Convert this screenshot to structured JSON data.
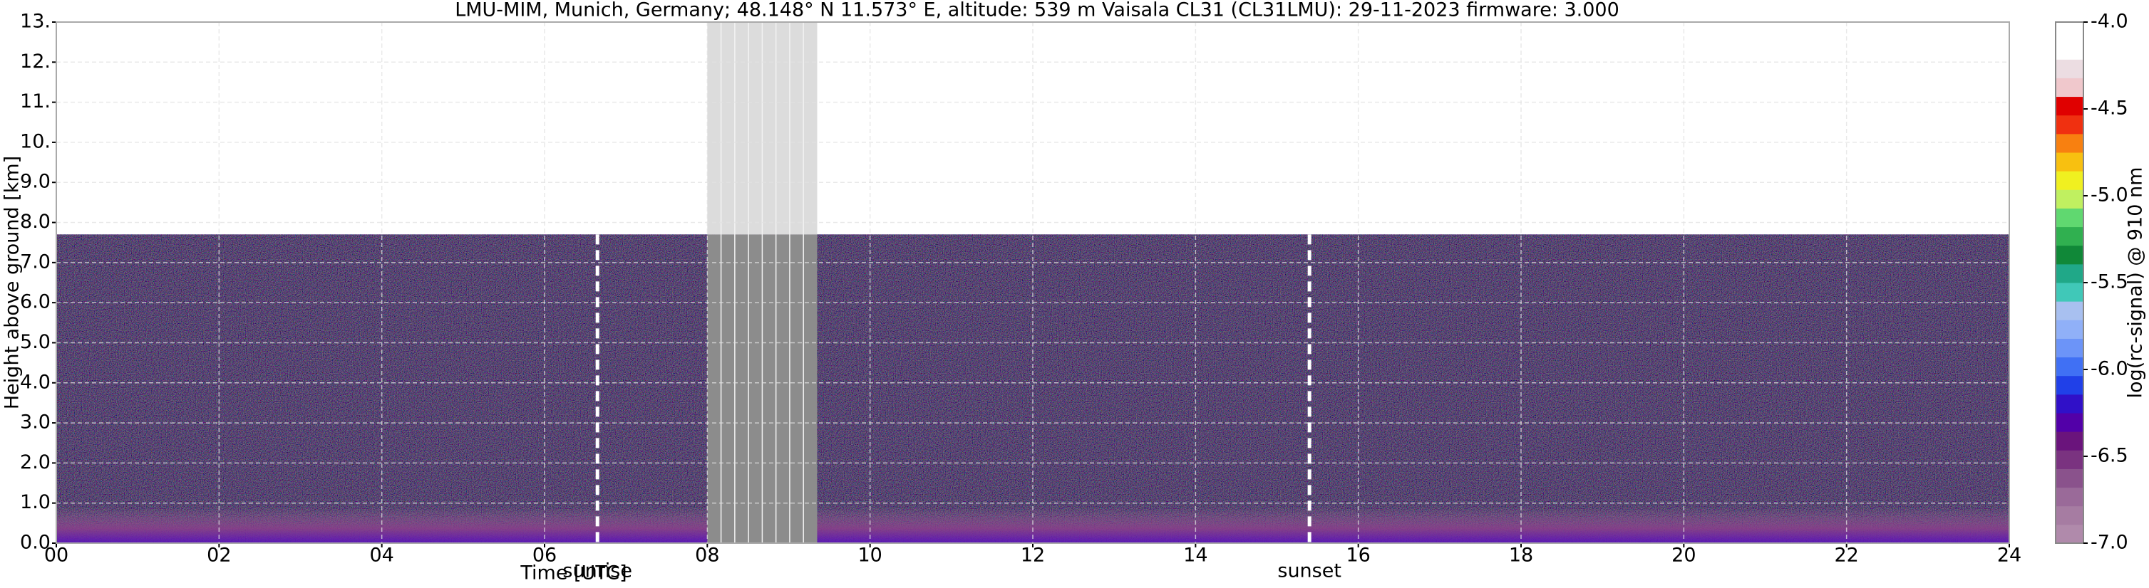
{
  "chart_data": {
    "type": "heatmap",
    "title": "LMU-MIM, Munich, Germany; 48.148° N 11.573° E, altitude: 539 m    Vaisala CL31 (CL31LMU): 29-11-2023    firmware: 3.000",
    "x_label": "Time [UTC]",
    "y_label": "Height above ground [km]",
    "xlim": [
      0,
      24
    ],
    "xticks": [
      {
        "value": 0,
        "label": "00"
      },
      {
        "value": 2,
        "label": "02"
      },
      {
        "value": 4,
        "label": "04"
      },
      {
        "value": 6,
        "label": "06"
      },
      {
        "value": 8,
        "label": "08"
      },
      10,
      12,
      14,
      16,
      18,
      20,
      22,
      24
    ],
    "ylim": [
      0,
      13
    ],
    "yticks": [
      {
        "value": 0,
        "label": "0.0"
      },
      {
        "value": 1,
        "label": "1.0"
      },
      {
        "value": 2,
        "label": "2.0"
      },
      {
        "value": 3,
        "label": "3.0"
      },
      {
        "value": 4,
        "label": "4.0"
      },
      {
        "value": 5,
        "label": "5.0"
      },
      {
        "value": 6,
        "label": "6.0"
      },
      {
        "value": 7,
        "label": "7.0"
      },
      {
        "value": 8,
        "label": "8.0"
      },
      {
        "value": 9,
        "label": "9.0"
      },
      {
        "value": 10,
        "label": "10."
      },
      {
        "value": 11,
        "label": "11."
      },
      {
        "value": 12,
        "label": "12."
      },
      {
        "value": 13,
        "label": "13."
      }
    ],
    "grid": true,
    "measured_top": 7.7,
    "missing_data": [
      8.0,
      9.35
    ],
    "annotations": [
      {
        "label": "sunrise",
        "x": 6.65
      },
      {
        "label": "sunset",
        "x": 15.4
      }
    ],
    "colorbar": {
      "label": "log(rc-signal) @ 910 nm",
      "clim": [
        -7.0,
        -4.0
      ],
      "ticks": [
        {
          "value": -7.0,
          "label": "-7.0"
        },
        {
          "value": -6.5,
          "label": "-6.5"
        },
        {
          "value": -6.0,
          "label": "-6.0"
        },
        {
          "value": -5.5,
          "label": "-5.5"
        },
        {
          "value": -5.0,
          "label": "-5.0"
        },
        {
          "value": -4.5,
          "label": "-4.5"
        },
        {
          "value": -4.0,
          "label": "-4.0"
        }
      ],
      "colors": [
        "#b08aab",
        "#a67ca2",
        "#9a6a99",
        "#8a528c",
        "#7a3380",
        "#6a147c",
        "#5200a8",
        "#3010c8",
        "#2040e8",
        "#4070f4",
        "#6c94f8",
        "#90b0f8",
        "#a8c0f0",
        "#40c8b8",
        "#20a888",
        "#108838",
        "#30b050",
        "#60d870",
        "#c0f060",
        "#f0f020",
        "#f8c010",
        "#f88010",
        "#f03010",
        "#e00000",
        "#f0c8cc",
        "#ecdde2",
        "#ffffff",
        "#ffffff"
      ]
    }
  }
}
